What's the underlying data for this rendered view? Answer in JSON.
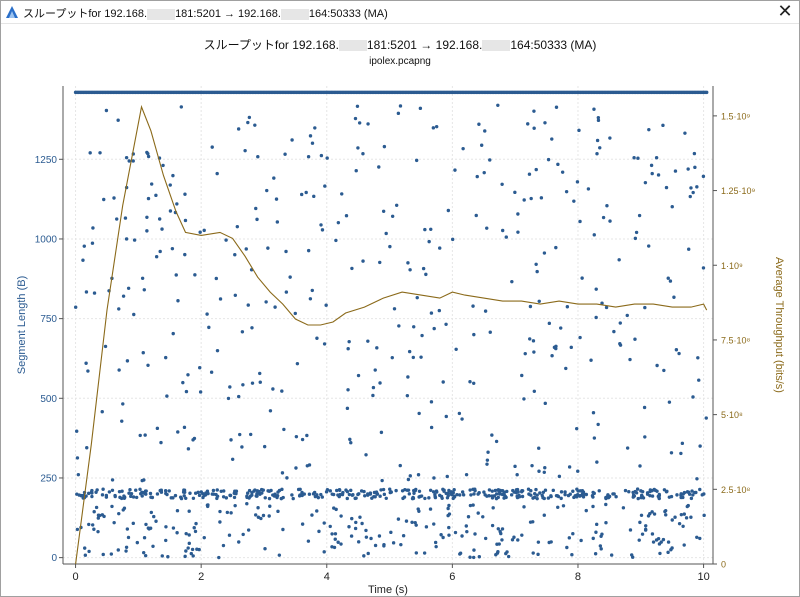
{
  "window": {
    "title_prefix": "スループットfor 192.168.",
    "title_mid1": "181:5201 → 192.168.",
    "title_mid2": "164:50333 (MA)",
    "close_label": "✕"
  },
  "chart_data": {
    "type": "scatter",
    "title_parts": [
      "スループットfor 192.168.",
      "181:5201 → 192.168.",
      "164:50333 (MA)"
    ],
    "subtitle": "ipolex.pcapng",
    "xlabel": "Time (s)",
    "ylabel_left": "Segment Length (B)",
    "ylabel_right": "Average Throughput (bits/s)",
    "xlim": [
      -0.2,
      10.15
    ],
    "ylim_left": [
      -20,
      1480
    ],
    "ylim_right": [
      0,
      1600000000
    ],
    "x_ticks": [
      0,
      2,
      4,
      6,
      8,
      10
    ],
    "y_left_ticks": [
      0,
      250,
      500,
      750,
      1000,
      1250
    ],
    "y_right_ticks": [
      {
        "value": 0,
        "label": "0"
      },
      {
        "value": 250000000,
        "label": "2.5·10⁸"
      },
      {
        "value": 500000000,
        "label": "5·10⁸"
      },
      {
        "value": 750000000,
        "label": "7.5·10⁸"
      },
      {
        "value": 1000000000,
        "label": "1·10⁹"
      },
      {
        "value": 1250000000,
        "label": "1.25·10⁹"
      },
      {
        "value": 1500000000,
        "label": "1.5·10⁹"
      }
    ],
    "grid": true,
    "colors": {
      "segments": "#2b5b91",
      "throughput": "#8b6a1a",
      "grid": "#e6e6e6"
    },
    "series": [
      {
        "name": "Segment Length",
        "axis": "left",
        "max_segment": 1460,
        "baseline_level": 200,
        "x_range": [
          0,
          10.05
        ]
      },
      {
        "name": "Average Throughput",
        "axis": "right",
        "x": [
          0,
          0.25,
          0.5,
          0.75,
          1.05,
          1.2,
          1.4,
          1.6,
          1.75,
          2.0,
          2.3,
          2.5,
          2.7,
          2.9,
          3.1,
          3.3,
          3.5,
          3.7,
          3.9,
          4.1,
          4.3,
          4.6,
          4.9,
          5.2,
          5.5,
          5.8,
          6.0,
          6.2,
          6.5,
          6.8,
          7.1,
          7.4,
          7.7,
          8.0,
          8.3,
          8.6,
          8.9,
          9.2,
          9.5,
          9.8,
          10.0,
          10.05
        ],
        "y": [
          0,
          400000000,
          850000000,
          1200000000,
          1530000000,
          1450000000,
          1300000000,
          1180000000,
          1110000000,
          1100000000,
          1110000000,
          1090000000,
          1030000000,
          960000000,
          910000000,
          870000000,
          820000000,
          800000000,
          800000000,
          810000000,
          840000000,
          860000000,
          890000000,
          910000000,
          900000000,
          890000000,
          910000000,
          900000000,
          890000000,
          880000000,
          880000000,
          870000000,
          880000000,
          870000000,
          870000000,
          860000000,
          870000000,
          870000000,
          860000000,
          860000000,
          870000000,
          850000000
        ]
      }
    ]
  }
}
